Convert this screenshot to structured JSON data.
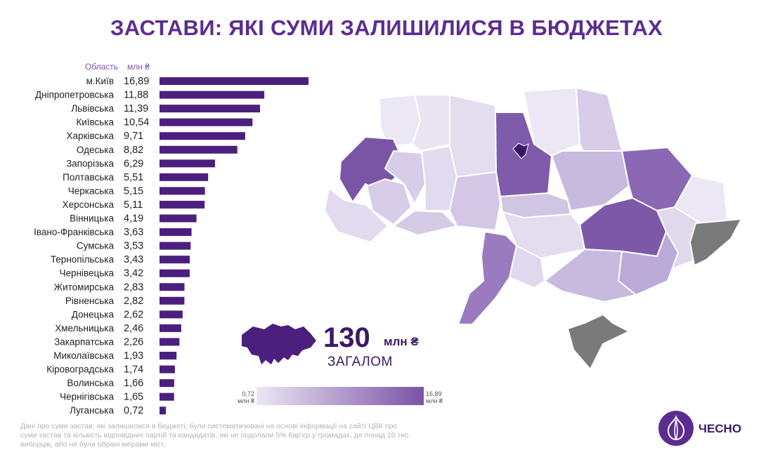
{
  "title": "ЗАСТАВИ: ЯКІ СУМИ ЗАЛИШИЛИСЯ В БЮДЖЕТАХ",
  "chart_data": {
    "type": "bar",
    "orientation": "horizontal",
    "title": "ЗАСТАВИ: ЯКІ СУМИ ЗАЛИШИЛИСЯ В БЮДЖЕТАХ",
    "category_header": "Область",
    "value_header": "млн ₴",
    "categories": [
      "м.Київ",
      "Дніпропетровська",
      "Львівська",
      "Київська",
      "Харківська",
      "Одеська",
      "Запорізька",
      "Полтавська",
      "Черкаська",
      "Херсонська",
      "Вінницька",
      "Івано-Франківська",
      "Сумська",
      "Тернопільська",
      "Чернівецька",
      "Житомирська",
      "Рівненська",
      "Донецька",
      "Хмельницька",
      "Закарпатська",
      "Миколаївська",
      "Кіровоградська",
      "Волинська",
      "Чернігівська",
      "Луганська"
    ],
    "values": [
      16.89,
      11.88,
      11.39,
      10.54,
      9.71,
      8.82,
      6.29,
      5.51,
      5.15,
      5.11,
      4.19,
      3.63,
      3.53,
      3.43,
      3.42,
      2.83,
      2.82,
      2.62,
      2.46,
      2.26,
      1.93,
      1.74,
      1.66,
      1.65,
      0.72
    ],
    "value_labels": [
      "16,89",
      "11,88",
      "11,39",
      "10,54",
      "9,71",
      "8,82",
      "6,29",
      "5,51",
      "5,15",
      "5,11",
      "4,19",
      "3,63",
      "3,53",
      "3,43",
      "3,42",
      "2,83",
      "2,82",
      "2,62",
      "2,46",
      "2,26",
      "1,93",
      "1,74",
      "1,66",
      "1,65",
      "0,72"
    ],
    "bar_color": "#4b1f7e"
  },
  "total": {
    "number": "130",
    "unit": "млн ₴",
    "label": "ЗАГАЛОМ"
  },
  "legend": {
    "min_value": 0.72,
    "min_label": "0,72",
    "min_unit": "млн ₴",
    "max_value": 16.89,
    "max_label": "16,89",
    "max_unit": "млн ₴",
    "color_low": "#ece7f4",
    "color_high": "#7b52a8"
  },
  "map": {
    "no_data_color": "#7a7a7a",
    "border_color": "#ffffff"
  },
  "footnote": "Дані про суми застав, які залишилися в бюджеті, були систематизовані на основі інформації на сайті ЦВК про суми застав та кількість відповідних партій та кандидатів, які не подолали 5% бар'єр у громадах, де понад 10 тис. виборців, або не були обрані мерами міст.",
  "logo": {
    "name": "ЧЕСНО"
  },
  "colors": {
    "title": "#5c2d91",
    "dark": "#3a1a66"
  }
}
